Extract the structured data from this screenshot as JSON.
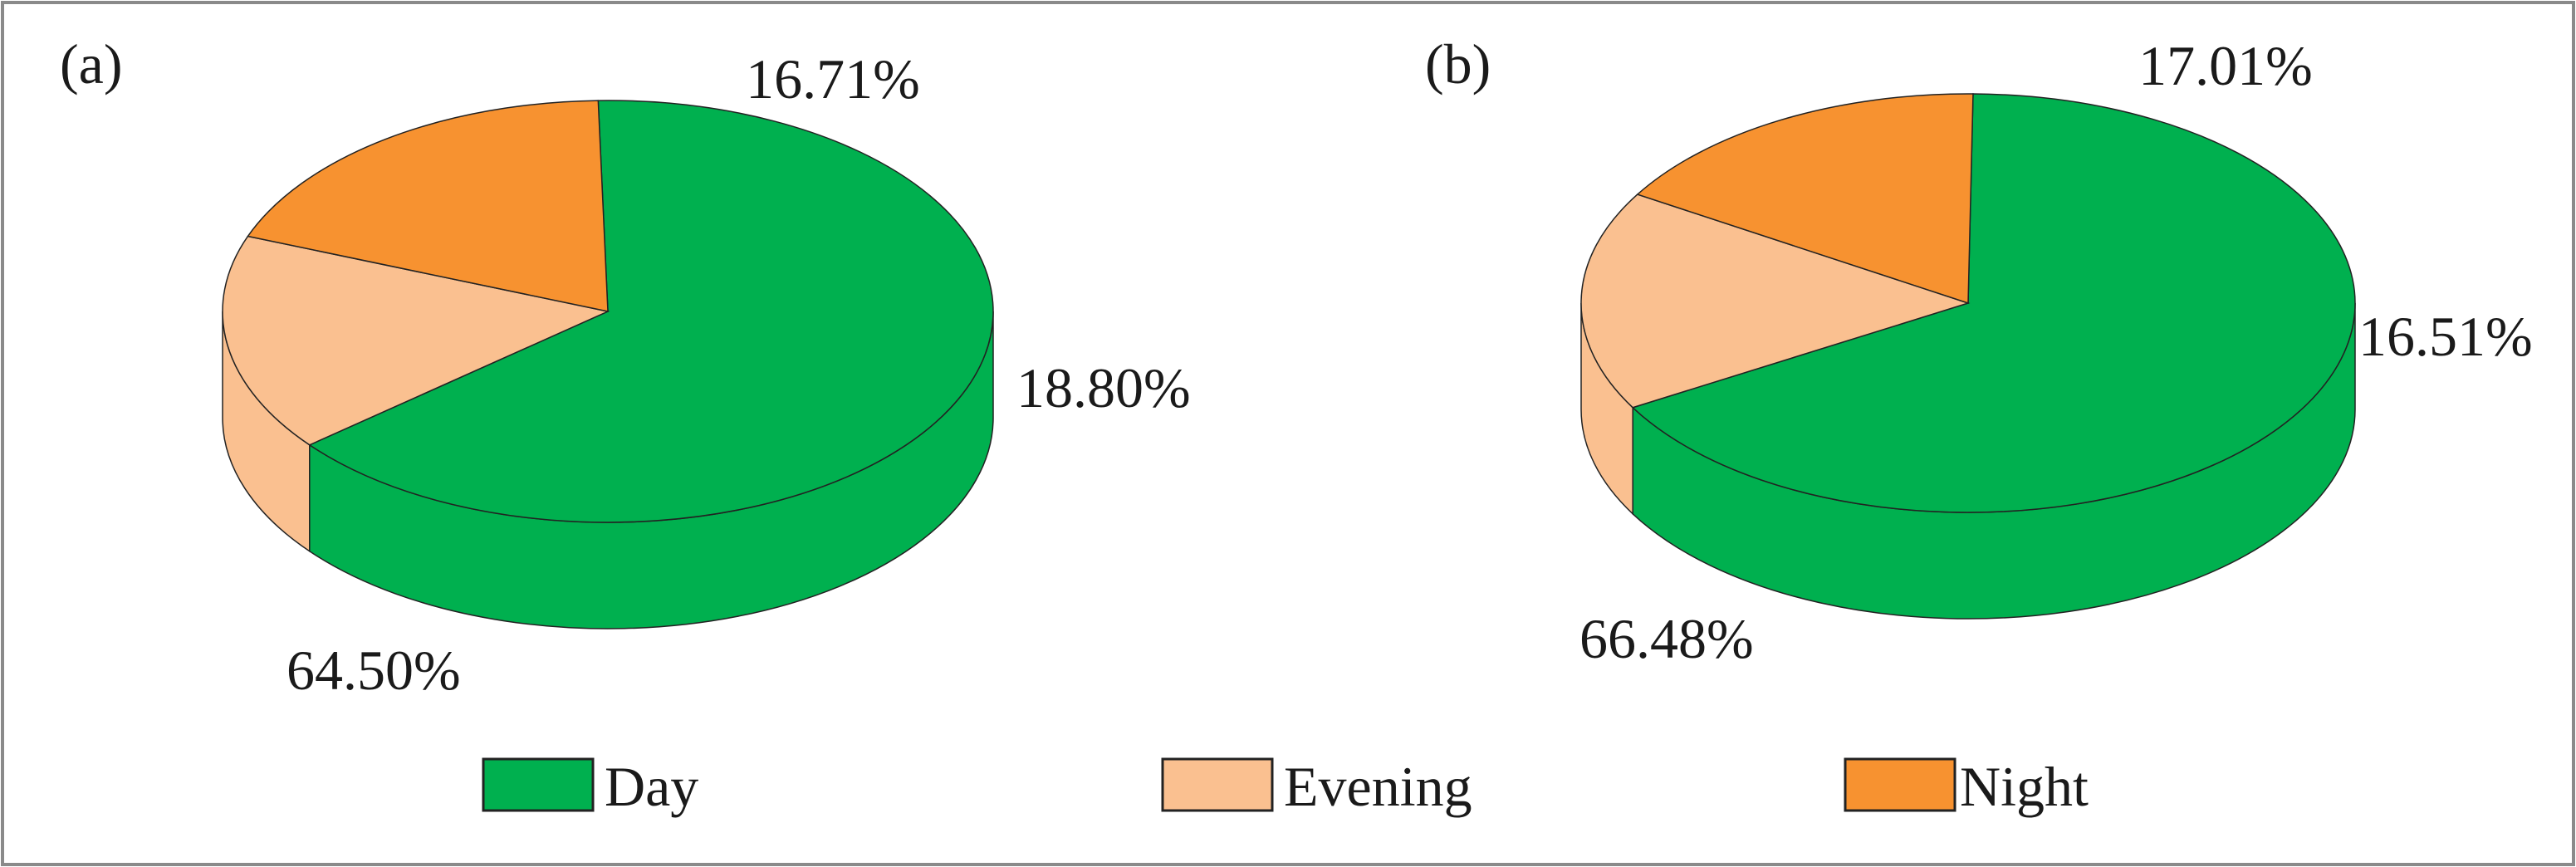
{
  "chart_data": [
    {
      "type": "pie",
      "panel_label": "(a)",
      "title": "",
      "slices": [
        {
          "label": "Day",
          "value": 64.5,
          "value_label": "64.50%",
          "color": "#00b04f"
        },
        {
          "label": "Evening",
          "value": 16.71,
          "value_label": "16.71%",
          "color": "#fac090"
        },
        {
          "label": "Night",
          "value": 18.8,
          "value_label": "18.80%",
          "color": "#f79230"
        }
      ],
      "style": "3d"
    },
    {
      "type": "pie",
      "panel_label": "(b)",
      "title": "",
      "slices": [
        {
          "label": "Day",
          "value": 66.48,
          "value_label": "66.48%",
          "color": "#00b04f"
        },
        {
          "label": "Evening",
          "value": 17.01,
          "value_label": "17.01%",
          "color": "#fac090"
        },
        {
          "label": "Night",
          "value": 16.51,
          "value_label": "16.51%",
          "color": "#f79230"
        }
      ],
      "style": "3d"
    }
  ],
  "legend": {
    "placement": "bottom",
    "items": [
      {
        "label": "Day",
        "color": "#00b04f"
      },
      {
        "label": "Evening",
        "color": "#fac090"
      },
      {
        "label": "Night",
        "color": "#f79230"
      }
    ]
  }
}
